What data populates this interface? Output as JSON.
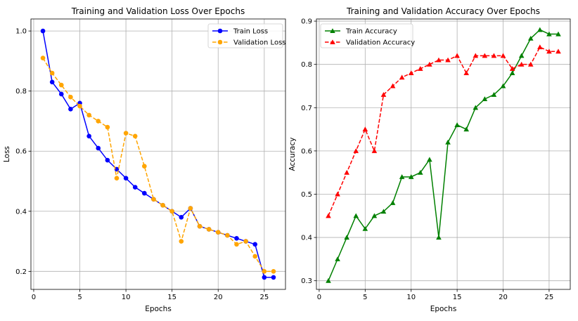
{
  "chart_data": [
    {
      "type": "line",
      "title": "Training and Validation Loss Over Epochs",
      "xlabel": "Epochs",
      "ylabel": "Loss",
      "xlim": [
        -0.3,
        27.3
      ],
      "ylim": [
        0.14,
        1.04
      ],
      "xticks": [
        0,
        5,
        10,
        15,
        20,
        25
      ],
      "yticks": [
        0.2,
        0.4,
        0.6,
        0.8,
        1.0
      ],
      "ytick_format": 1,
      "grid": true,
      "legend_position": "top-right",
      "x": [
        1,
        2,
        3,
        4,
        5,
        6,
        7,
        8,
        9,
        10,
        11,
        12,
        13,
        14,
        15,
        16,
        17,
        18,
        19,
        20,
        21,
        22,
        23,
        24,
        25,
        26
      ],
      "series": [
        {
          "name": "Train Loss",
          "color": "#0000ff",
          "line": "solid",
          "marker": "circle",
          "values": [
            1.0,
            0.83,
            0.79,
            0.74,
            0.76,
            0.65,
            0.61,
            0.57,
            0.54,
            0.51,
            0.48,
            0.46,
            0.44,
            0.42,
            0.4,
            0.38,
            0.41,
            0.35,
            0.34,
            0.33,
            0.32,
            0.31,
            0.3,
            0.29,
            0.18,
            0.18
          ]
        },
        {
          "name": "Validation Loss",
          "color": "#ffa500",
          "line": "dashed",
          "marker": "circle",
          "values": [
            0.91,
            0.86,
            0.82,
            0.78,
            0.75,
            0.72,
            0.7,
            0.68,
            0.51,
            0.66,
            0.65,
            0.55,
            0.44,
            0.42,
            0.4,
            0.3,
            0.41,
            0.35,
            0.34,
            0.33,
            0.32,
            0.29,
            0.3,
            0.25,
            0.2,
            0.2
          ]
        }
      ]
    },
    {
      "type": "line",
      "title": "Training and Validation Accuracy Over Epochs",
      "xlabel": "Epochs",
      "ylabel": "Accuracy",
      "xlim": [
        -0.3,
        27.3
      ],
      "ylim": [
        0.28,
        0.905
      ],
      "xticks": [
        0,
        5,
        10,
        15,
        20,
        25
      ],
      "yticks": [
        0.3,
        0.4,
        0.5,
        0.6,
        0.7,
        0.8,
        0.9
      ],
      "ytick_format": 1,
      "grid": true,
      "legend_position": "top-left",
      "x": [
        1,
        2,
        3,
        4,
        5,
        6,
        7,
        8,
        9,
        10,
        11,
        12,
        13,
        14,
        15,
        16,
        17,
        18,
        19,
        20,
        21,
        22,
        23,
        24,
        25,
        26
      ],
      "series": [
        {
          "name": "Train Accuracy",
          "color": "#008000",
          "line": "solid",
          "marker": "triangle",
          "values": [
            0.3,
            0.35,
            0.4,
            0.45,
            0.42,
            0.45,
            0.46,
            0.48,
            0.54,
            0.54,
            0.55,
            0.58,
            0.4,
            0.62,
            0.66,
            0.65,
            0.7,
            0.72,
            0.73,
            0.75,
            0.78,
            0.82,
            0.86,
            0.88,
            0.87,
            0.87
          ]
        },
        {
          "name": "Validation Accuracy",
          "color": "#ff0000",
          "line": "dashed",
          "marker": "triangle",
          "values": [
            0.45,
            0.5,
            0.55,
            0.6,
            0.65,
            0.6,
            0.73,
            0.75,
            0.77,
            0.78,
            0.79,
            0.8,
            0.81,
            0.81,
            0.82,
            0.78,
            0.82,
            0.82,
            0.82,
            0.82,
            0.79,
            0.8,
            0.8,
            0.84,
            0.83,
            0.83
          ]
        }
      ]
    }
  ]
}
